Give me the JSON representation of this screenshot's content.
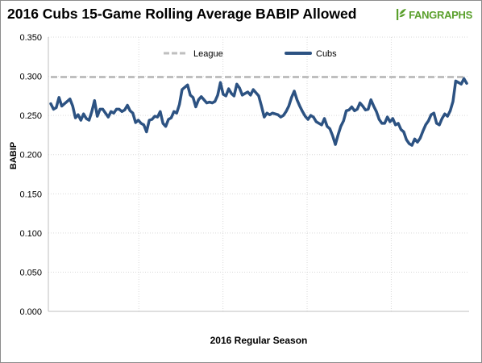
{
  "brand": {
    "name": "FANGRAPHS"
  },
  "chart_data": {
    "type": "line",
    "title": "2016 Cubs 15-Game Rolling Average BABIP Allowed",
    "xlabel": "2016 Regular Season",
    "ylabel": "BABIP",
    "ylim": [
      0,
      0.35
    ],
    "yticks": [
      "0.000",
      "0.050",
      "0.100",
      "0.150",
      "0.200",
      "0.250",
      "0.300",
      "0.350"
    ],
    "grid": true,
    "legend_position": "top",
    "series": [
      {
        "name": "League",
        "style": "dashed",
        "color": "#bfbfbf",
        "values": [
          0.299,
          0.299
        ]
      },
      {
        "name": "Cubs",
        "style": "solid",
        "color": "#2c5282",
        "values": [
          0.265,
          0.258,
          0.26,
          0.273,
          0.262,
          0.265,
          0.268,
          0.271,
          0.262,
          0.247,
          0.251,
          0.244,
          0.252,
          0.246,
          0.244,
          0.255,
          0.269,
          0.249,
          0.258,
          0.258,
          0.253,
          0.248,
          0.255,
          0.253,
          0.258,
          0.258,
          0.255,
          0.257,
          0.263,
          0.256,
          0.253,
          0.241,
          0.244,
          0.24,
          0.238,
          0.229,
          0.244,
          0.245,
          0.249,
          0.248,
          0.255,
          0.24,
          0.236,
          0.245,
          0.247,
          0.255,
          0.253,
          0.264,
          0.283,
          0.286,
          0.289,
          0.276,
          0.273,
          0.261,
          0.27,
          0.274,
          0.27,
          0.266,
          0.267,
          0.266,
          0.268,
          0.276,
          0.292,
          0.277,
          0.275,
          0.284,
          0.278,
          0.275,
          0.29,
          0.285,
          0.276,
          0.278,
          0.28,
          0.276,
          0.283,
          0.279,
          0.275,
          0.262,
          0.248,
          0.253,
          0.251,
          0.253,
          0.252,
          0.251,
          0.248,
          0.25,
          0.255,
          0.262,
          0.273,
          0.281,
          0.27,
          0.262,
          0.255,
          0.249,
          0.245,
          0.25,
          0.248,
          0.242,
          0.24,
          0.238,
          0.246,
          0.236,
          0.233,
          0.224,
          0.213,
          0.225,
          0.236,
          0.243,
          0.256,
          0.257,
          0.261,
          0.256,
          0.258,
          0.266,
          0.262,
          0.257,
          0.258,
          0.27,
          0.262,
          0.255,
          0.245,
          0.24,
          0.24,
          0.248,
          0.242,
          0.246,
          0.238,
          0.24,
          0.232,
          0.229,
          0.219,
          0.214,
          0.212,
          0.22,
          0.216,
          0.221,
          0.23,
          0.238,
          0.243,
          0.251,
          0.253,
          0.24,
          0.238,
          0.246,
          0.252,
          0.249,
          0.256,
          0.268,
          0.294,
          0.292,
          0.29,
          0.297,
          0.291
        ]
      }
    ]
  }
}
